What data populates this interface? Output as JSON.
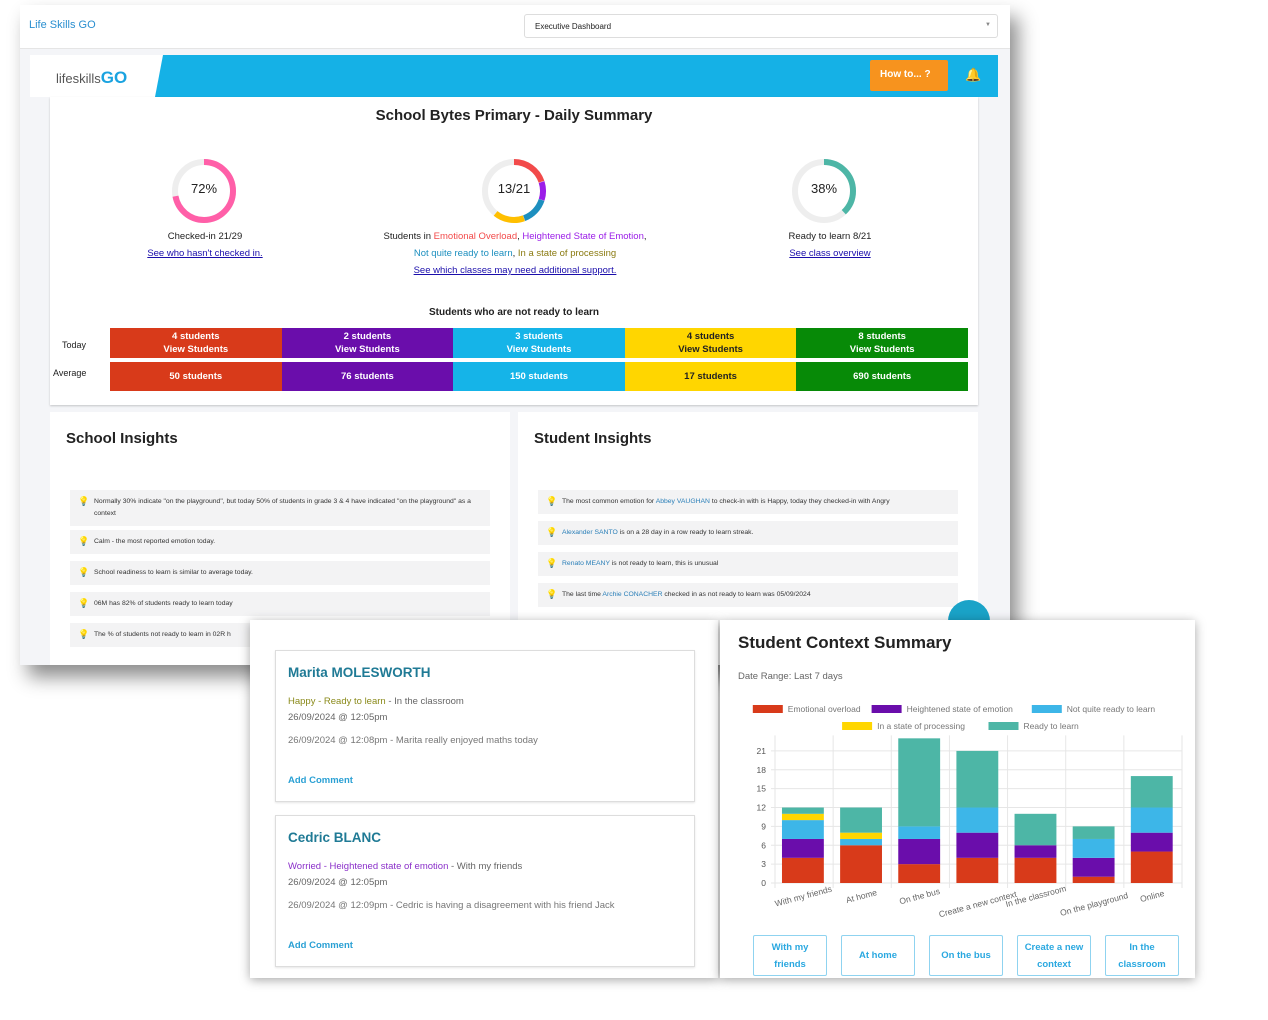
{
  "app": {
    "title": "Life Skills GO",
    "dashboard_select": "Executive Dashboard",
    "logo": "lifeskillsGO",
    "howto_label": "How to...",
    "colors": {
      "brand": "#15b1e6",
      "howto": "#f7931e"
    }
  },
  "summary": {
    "title": "School Bytes Primary - Daily Summary",
    "checked_in": {
      "value_label": "72%",
      "percent": 72,
      "caption": "Checked-in 21/29",
      "link": "See who hasn't checked in.",
      "color": "#ff5fa8"
    },
    "emotion": {
      "value_label": "13/21",
      "caption_prefix": "Students in ",
      "cat1": "Emotional Overload",
      "cat2": "Heightened State of Emotion",
      "cat3": "Not quite ready to learn",
      "cat4": "In a state of processing",
      "link": "See which classes may need additional support."
    },
    "ready": {
      "value_label": "38%",
      "percent": 38,
      "caption": "Ready to learn 8/21",
      "link": "See class overview",
      "color": "#4db6a6"
    },
    "not_ready_title": "Students who are not ready to learn",
    "today_label": "Today",
    "average_label": "Average",
    "view_label": "View Students",
    "today": [
      "4 students",
      "2 students",
      "3 students",
      "4 students",
      "8 students"
    ],
    "average": [
      "50 students",
      "76 students",
      "150 students",
      "17 students",
      "690 students"
    ],
    "band_colors": [
      "#d83a1a",
      "#6a0dab",
      "#15b4e8",
      "#ffd600",
      "#078a07"
    ]
  },
  "school_insights": {
    "title": "School Insights",
    "items": [
      "Normally 30% indicate \"on the playground\", but today 50% of students in grade 3 & 4 have indicated \"on the playground\" as a context",
      "Calm - the most reported emotion today.",
      "School readiness to learn is similar to average today.",
      "06M has 82% of students ready to learn today",
      "The % of students not ready to learn in 02R h"
    ]
  },
  "student_insights": {
    "title": "Student Insights",
    "items": [
      {
        "pre": "The most common emotion for ",
        "name": "Abbey VAUGHAN",
        "post": " to check-in with is Happy, today they checked-in with Angry"
      },
      {
        "pre": "",
        "name": "Alexander SANTO",
        "post": " is on a 28 day in a row ready to learn streak."
      },
      {
        "pre": "",
        "name": "Renato MEANY",
        "post": " is not ready to learn, this is unusual"
      },
      {
        "pre": "The last time ",
        "name": "Archie CONACHER",
        "post": " checked in as not ready to learn was 05/09/2024"
      }
    ]
  },
  "cards": [
    {
      "name": "Marita MOLESWORTH",
      "state": "Happy - Ready to learn",
      "state_color": "#8a8a1a",
      "context": " - In the classroom",
      "time": "26/09/2024 @ 12:05pm",
      "comment": "26/09/2024 @ 12:08pm - Marita really enjoyed maths today",
      "add": "Add Comment"
    },
    {
      "name": "Cedric BLANC",
      "state": "Worried - Heightened state of emotion",
      "state_color": "#8a2fc9",
      "context": " - With my friends",
      "time": "26/09/2024 @ 12:05pm",
      "comment": "26/09/2024 @ 12:09pm - Cedric is having a disagreement with his friend Jack",
      "add": "Add Comment"
    }
  ],
  "chart_panel": {
    "title": "Student Context Summary",
    "date_range": "Date Range: Last 7 days",
    "buttons": [
      "With my friends",
      "At home",
      "On the bus",
      "Create a new context",
      "In the classroom"
    ]
  },
  "chart_data": {
    "type": "bar",
    "stacked": true,
    "categories": [
      "With my friends",
      "At home",
      "On the bus",
      "Create a new context",
      "In the classroom",
      "On the playground",
      "Online"
    ],
    "series": [
      {
        "name": "Emotional overload",
        "color": "#d83a1a",
        "values": [
          4,
          6,
          3,
          4,
          4,
          1,
          5
        ]
      },
      {
        "name": "Heightened state of emotion",
        "color": "#6a0dab",
        "values": [
          3,
          0,
          4,
          4,
          2,
          3,
          3
        ]
      },
      {
        "name": "Not quite ready to learn",
        "color": "#3db6e8",
        "values": [
          3,
          1,
          2,
          4,
          0,
          3,
          4
        ]
      },
      {
        "name": "In a state of processing",
        "color": "#ffd600",
        "values": [
          1,
          1,
          0,
          0,
          0,
          0,
          0
        ]
      },
      {
        "name": "Ready to learn",
        "color": "#4db6a6",
        "values": [
          1,
          4,
          14,
          9,
          5,
          2,
          5
        ]
      }
    ],
    "yticks": [
      0,
      3,
      6,
      9,
      12,
      15,
      18,
      21
    ],
    "ylim": [
      0,
      23
    ],
    "grid": true,
    "legend": "top"
  }
}
